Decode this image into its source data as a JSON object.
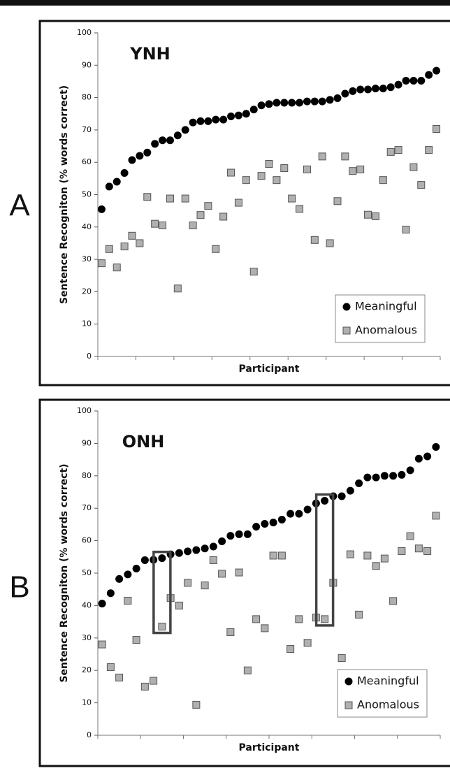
{
  "chart_data": [
    {
      "type": "scatter",
      "panel_label": "A",
      "title": "YNH",
      "x_label": "Participant",
      "y_label": "Sentence Recogniton (% words correct)",
      "categories": [
        null,
        null,
        null,
        null,
        null,
        null,
        null,
        null,
        null,
        null,
        null,
        null,
        null,
        null,
        null,
        null,
        null,
        null,
        null,
        null,
        null,
        null,
        null,
        null,
        null,
        null,
        null,
        null,
        null,
        null,
        null,
        null,
        null,
        null,
        null,
        null,
        null,
        null,
        null,
        null,
        null,
        null,
        null,
        null,
        null
      ],
      "series": [
        {
          "name": "Meaningful",
          "color": "#000000",
          "marker": "circle",
          "values": [
            45.5,
            52.5,
            54,
            56.7,
            60.7,
            62,
            63,
            65.7,
            66.8,
            66.8,
            68.3,
            70,
            72.3,
            72.7,
            72.7,
            73.2,
            73.2,
            74.2,
            74.5,
            75,
            76.3,
            77.6,
            78,
            78.4,
            78.4,
            78.4,
            78.4,
            78.8,
            78.8,
            78.8,
            79.3,
            79.8,
            81.2,
            82,
            82.5,
            82.5,
            82.8,
            82.8,
            83.2,
            84,
            85.2,
            85.2,
            85.2,
            87,
            88.3
          ]
        },
        {
          "name": "Anomalous",
          "color": "#b0b0b0",
          "marker": "square",
          "values": [
            28.8,
            33.2,
            27.5,
            34,
            37.3,
            35,
            49.3,
            41,
            40.5,
            48.8,
            21,
            48.8,
            40.5,
            43.7,
            46.5,
            33.2,
            43.2,
            56.8,
            47.5,
            54.5,
            26.2,
            55.8,
            59.5,
            54.5,
            58.2,
            48.8,
            45.6,
            57.8,
            36,
            61.8,
            35,
            48,
            61.8,
            57.3,
            57.8,
            43.8,
            43.3,
            54.5,
            63.2,
            63.8,
            39.2,
            58.5,
            53,
            63.8,
            70.3
          ]
        }
      ],
      "ylim": [
        0,
        100
      ],
      "yticks": [
        0,
        10,
        20,
        30,
        40,
        50,
        60,
        70,
        80,
        90,
        100
      ],
      "legend": "lower right",
      "highlight": []
    },
    {
      "type": "scatter",
      "panel_label": "B",
      "title": "ONH",
      "x_label": "Participant",
      "y_label": "Sentence Recogniton (% words correct)",
      "categories": [
        null,
        null,
        null,
        null,
        null,
        null,
        null,
        null,
        null,
        null,
        null,
        null,
        null,
        null,
        null,
        null,
        null,
        null,
        null,
        null,
        null,
        null,
        null,
        null,
        null,
        null,
        null,
        null,
        null,
        null,
        null,
        null,
        null,
        null,
        null,
        null,
        null,
        null,
        null,
        null
      ],
      "series": [
        {
          "name": "Meaningful",
          "color": "#000000",
          "marker": "circle",
          "values": [
            40.6,
            43.8,
            48.2,
            49.6,
            51.4,
            54,
            54.1,
            54.6,
            55.8,
            56.2,
            56.7,
            57.1,
            57.6,
            58.2,
            59.8,
            61.5,
            62,
            62,
            64.3,
            65.2,
            65.6,
            66.5,
            68.3,
            68.3,
            69.6,
            71.5,
            72.3,
            73.7,
            73.7,
            75.4,
            77.7,
            79.5,
            79.5,
            80,
            80,
            80.3,
            81.7,
            85.3,
            86,
            88.9
          ]
        },
        {
          "name": "Anomalous",
          "color": "#b0b0b0",
          "marker": "square",
          "values": [
            28,
            21,
            17.8,
            41.5,
            29.4,
            15,
            16.8,
            33.5,
            42.3,
            40,
            47,
            9.4,
            46.2,
            54,
            49.8,
            31.8,
            50.2,
            20,
            35.8,
            33,
            55.4,
            55.4,
            26.6,
            35.8,
            28.5,
            36.3,
            35.8,
            47,
            23.8,
            55.8,
            37.2,
            55.4,
            52.2,
            54.5,
            41.4,
            56.8,
            61.4,
            57.6,
            56.8,
            67.7
          ]
        }
      ],
      "ylim": [
        0,
        100
      ],
      "yticks": [
        0,
        10,
        20,
        30,
        40,
        50,
        60,
        70,
        80,
        90,
        100
      ],
      "legend": "lower right",
      "highlight": [
        7,
        26
      ]
    }
  ]
}
